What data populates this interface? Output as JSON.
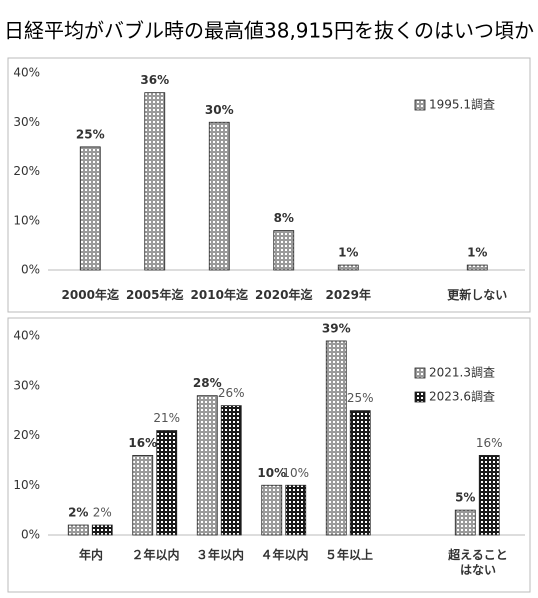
{
  "title": "日経平均がバブル時の最高値38,915円を抜くのはいつ頃か",
  "chart_data": [
    {
      "type": "bar",
      "categories": [
        "2000年迄",
        "2005年迄",
        "2010年迄",
        "2020年迄",
        "2029年",
        null,
        "更新しない"
      ],
      "series": [
        {
          "name": "1995.1調査",
          "color": "#9a9a9a",
          "values": [
            25,
            36,
            30,
            8,
            1,
            null,
            1
          ],
          "value_labels": [
            "25%",
            "36%",
            "30%",
            "8%",
            "1%",
            null,
            "1%"
          ]
        }
      ],
      "ylim": [
        0,
        40
      ],
      "yticks": [
        {
          "value": 0,
          "label": "0%"
        },
        {
          "value": 10,
          "label": "10%"
        },
        {
          "value": 20,
          "label": "20%"
        },
        {
          "value": 30,
          "label": "30%"
        },
        {
          "value": 40,
          "label": "40%"
        }
      ],
      "grid": false,
      "legend": "upper right"
    },
    {
      "type": "bar",
      "categories": [
        "年内",
        "２年以内",
        "３年以内",
        "４年以内",
        "５年以上",
        null,
        "超えることはない"
      ],
      "series": [
        {
          "name": "2021.3調査",
          "color": "#9a9a9a",
          "values": [
            2,
            16,
            28,
            10,
            39,
            null,
            5
          ],
          "value_labels": [
            "2%",
            "16%",
            "28%",
            "10%",
            "39%",
            null,
            "5%"
          ]
        },
        {
          "name": "2023.6調査",
          "color": "#1a1a1a",
          "values": [
            2,
            21,
            26,
            10,
            25,
            null,
            16
          ],
          "value_labels": [
            "2%",
            "21%",
            "26%",
            "10%",
            "25%",
            null,
            "16%"
          ]
        }
      ],
      "ylim": [
        0,
        40
      ],
      "yticks": [
        {
          "value": 0,
          "label": "0%"
        },
        {
          "value": 10,
          "label": "10%"
        },
        {
          "value": 20,
          "label": "20%"
        },
        {
          "value": 30,
          "label": "30%"
        },
        {
          "value": 40,
          "label": "40%"
        }
      ],
      "grid": false,
      "legend": "upper right"
    }
  ]
}
